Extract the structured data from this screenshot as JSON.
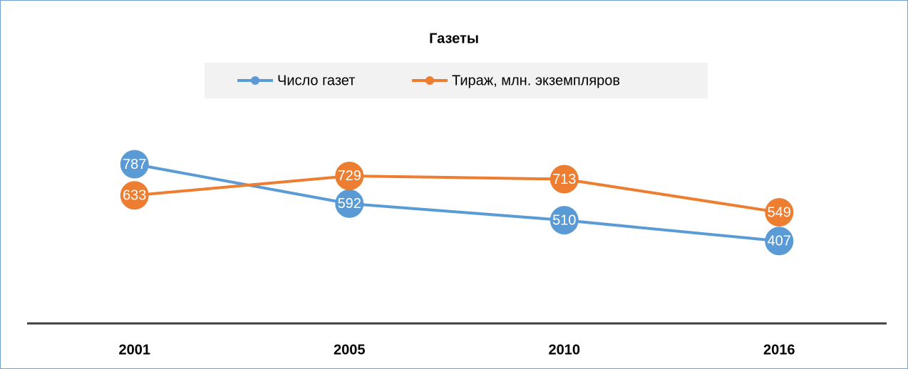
{
  "chart_data": {
    "type": "line",
    "title": "Газеты",
    "categories": [
      "2001",
      "2005",
      "2010",
      "2016"
    ],
    "series": [
      {
        "name": "Число газет",
        "color": "#5b9bd5",
        "values": [
          787,
          592,
          510,
          407
        ]
      },
      {
        "name": "Тираж, млн. экземпляров",
        "color": "#ed7d31",
        "values": [
          633,
          729,
          713,
          549
        ]
      }
    ],
    "ylim": [
      0,
      1000
    ],
    "legend": "top"
  }
}
